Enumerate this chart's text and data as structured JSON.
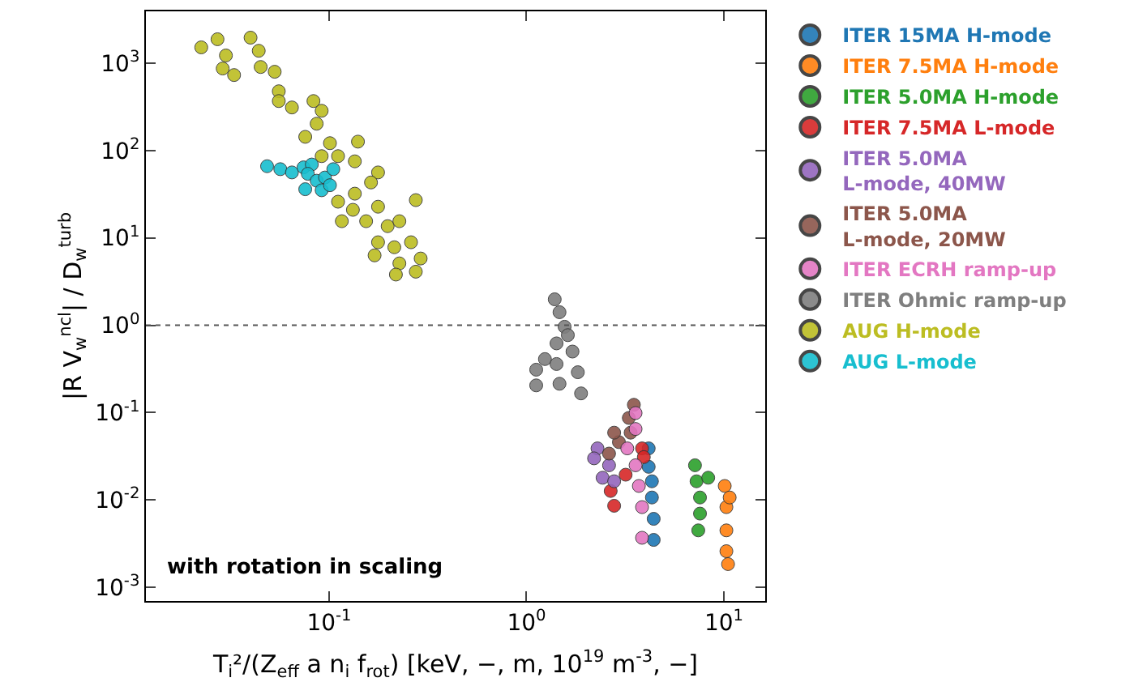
{
  "chart_data": {
    "type": "scatter",
    "xlabel": "T$_{i}$²/(Z$_{eff}$ a n$_{i}$ f$_{rot}$) [keV, −, m, 10$^{19}$ m$^{-3}$, −]",
    "ylabel": "|R V$_{w}$$^{ncl}$| / D$_{w}$$^{turb}$",
    "log": "xy",
    "marker": "circle",
    "legend": "right",
    "grid": false,
    "xlim": [
      0.0118,
      16.2
    ],
    "ylim": [
      0.0007,
      3900
    ],
    "xticks": [
      {
        "value": 0.1,
        "label": "10$^{-1}$"
      },
      {
        "value": 1,
        "label": "10$^{0}$"
      },
      {
        "value": 10,
        "label": "10$^{1}$"
      }
    ],
    "yticks": [
      {
        "value": 0.001,
        "label": "10$^{-3}$"
      },
      {
        "value": 0.01,
        "label": "10$^{-2}$"
      },
      {
        "value": 0.1,
        "label": "10$^{-1}$"
      },
      {
        "value": 1,
        "label": "10$^{0}$"
      },
      {
        "value": 10,
        "label": "10$^{1}$"
      },
      {
        "value": 100,
        "label": "10$^{2}$"
      },
      {
        "value": 1000,
        "label": "10$^{3}$"
      }
    ],
    "ref_lines": [
      {
        "axis": "y",
        "value": 1,
        "label": null,
        "color": "#555555",
        "line_style": "dotted"
      }
    ],
    "annotations": [
      "with rotation in scaling"
    ],
    "series": [
      {
        "name": "ITER 15MA H-mode",
        "color": "#1f77b4",
        "x": [
          4.16,
          4.16,
          4.32,
          4.32,
          4.41,
          4.41
        ],
        "values": [
          0.039,
          0.024,
          0.0164,
          0.0107,
          0.0061,
          0.0035
        ]
      },
      {
        "name": "ITER 7.5MA H-mode",
        "color": "#ff7f0e",
        "x": [
          10.1,
          10.3,
          10.3,
          10.3,
          10.5,
          10.7
        ],
        "values": [
          0.0145,
          0.0083,
          0.0045,
          0.0026,
          0.00185,
          0.0107
        ]
      },
      {
        "name": "ITER 5.0MA H-mode",
        "color": "#2ca02c",
        "x": [
          7.14,
          7.27,
          7.57,
          7.57,
          7.42,
          8.33
        ],
        "values": [
          0.025,
          0.0164,
          0.0107,
          0.007,
          0.0045,
          0.018
        ]
      },
      {
        "name": "ITER 7.5MA L-mode",
        "color": "#d62728",
        "x": [
          3.85,
          3.93,
          2.78,
          2.67,
          3.18
        ],
        "values": [
          0.039,
          0.031,
          0.0086,
          0.0127,
          0.0195
        ]
      },
      {
        "name": "ITER 5.0MA\nL-mode, 40MW",
        "color": "#9467bd",
        "x": [
          2.29,
          2.62,
          2.43,
          2.78,
          2.2
        ],
        "values": [
          0.039,
          0.025,
          0.018,
          0.0164,
          0.03
        ]
      },
      {
        "name": "ITER 5.0MA\nL-mode, 20MW",
        "color": "#8c564b",
        "x": [
          3.5,
          3.3,
          3.37,
          2.94,
          2.62,
          2.78
        ],
        "values": [
          0.123,
          0.087,
          0.059,
          0.046,
          0.034,
          0.059
        ]
      },
      {
        "name": "ITER ECRH ramp-up",
        "color": "#e377c2",
        "x": [
          3.57,
          3.57,
          3.24,
          3.57,
          3.71,
          3.85,
          3.85
        ],
        "values": [
          0.099,
          0.065,
          0.039,
          0.025,
          0.0145,
          0.0083,
          0.0037
        ]
      },
      {
        "name": "ITER Ohmic ramp-up",
        "color": "#7f7f7f",
        "x": [
          1.39,
          1.47,
          1.56,
          1.62,
          1.71,
          1.82,
          1.89,
          1.12,
          1.24,
          1.42,
          1.42,
          1.12,
          1.47
        ],
        "values": [
          1.98,
          1.41,
          0.96,
          0.77,
          0.5,
          0.29,
          0.166,
          0.31,
          0.41,
          0.62,
          0.36,
          0.205,
          0.214
        ]
      },
      {
        "name": "AUG H-mode",
        "color": "#bcbd22",
        "x": [
          0.0225,
          0.0272,
          0.03,
          0.0289,
          0.033,
          0.04,
          0.044,
          0.045,
          0.053,
          0.0556,
          0.0556,
          0.0648,
          0.0833,
          0.0917,
          0.0865,
          0.0757,
          0.101,
          0.0917,
          0.14,
          0.111,
          0.135,
          0.177,
          0.163,
          0.111,
          0.135,
          0.177,
          0.275,
          0.116,
          0.154,
          0.198,
          0.227,
          0.177,
          0.214,
          0.26,
          0.291,
          0.227,
          0.218,
          0.275,
          0.17,
          0.132
        ],
        "values": [
          1510,
          1870,
          1220,
          865,
          728,
          1950,
          1380,
          900,
          794,
          475,
          367,
          310,
          367,
          284,
          202,
          143,
          121,
          86,
          126,
          86,
          75,
          56,
          43,
          25.9,
          32,
          22.7,
          27,
          15.5,
          15.5,
          13.6,
          15.5,
          8.9,
          7.8,
          8.9,
          5.8,
          5.1,
          3.8,
          4.1,
          6.3,
          20.9
        ]
      },
      {
        "name": "AUG L-mode",
        "color": "#17becf",
        "x": [
          0.0485,
          0.0566,
          0.0648,
          0.0742,
          0.0817,
          0.078,
          0.0865,
          0.0953,
          0.0757,
          0.0917,
          0.105,
          0.101
        ],
        "values": [
          66,
          61,
          56,
          64,
          69,
          54,
          45,
          49,
          36,
          35,
          61,
          40
        ]
      }
    ]
  }
}
